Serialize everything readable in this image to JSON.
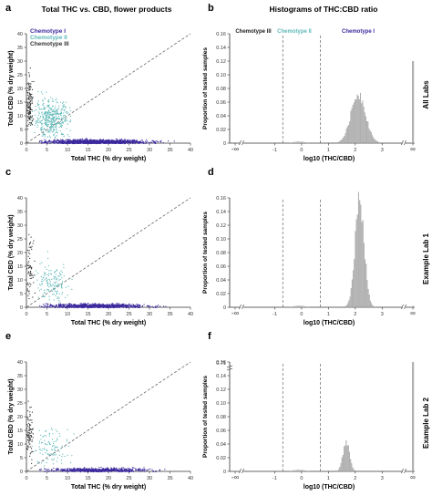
{
  "title_left": "Total THC vs. CBD, flower products",
  "title_right": "Histograms of THC:CBD ratio",
  "panel_letters": [
    "a",
    "b",
    "c",
    "d",
    "e",
    "f"
  ],
  "row_labels": [
    "All Labs",
    "Example Lab 1",
    "Example Lab 2"
  ],
  "legend": [
    {
      "label": "Chemotype I",
      "color": "#3c2a9e"
    },
    {
      "label": "Chemotype II",
      "color": "#5fb8b8"
    },
    {
      "label": "Chemotype III",
      "color": "#333333"
    }
  ],
  "chemotype_labels": {
    "iii": "Chemotype III",
    "ii": "Chemotype II",
    "i": "Chemotype I"
  },
  "chart_data": [
    {
      "type": "scatter",
      "panel": "a",
      "xlabel": "Total THC (% dry weight)",
      "ylabel": "Total CBD (% dry weight)",
      "xlim": [
        0,
        40
      ],
      "ylim": [
        0,
        40
      ],
      "xticks": [
        0,
        5,
        10,
        15,
        20,
        25,
        30,
        35,
        40
      ],
      "yticks": [
        0,
        5,
        10,
        15,
        20,
        25,
        30,
        35,
        40
      ],
      "series": [
        {
          "name": "Chemotype I",
          "cluster_center": [
            17,
            0.8
          ]
        },
        {
          "name": "Chemotype II",
          "cluster_center": [
            6,
            9
          ]
        },
        {
          "name": "Chemotype III",
          "cluster_center": [
            0.7,
            14
          ]
        }
      ]
    },
    {
      "type": "bar",
      "panel": "b",
      "xlabel": "log10 (THC/CBD)",
      "ylabel": "Proportion of tested samples",
      "ylim": [
        0,
        0.16
      ],
      "yticks": [
        "0",
        "0.02",
        "0.04",
        "0.06",
        "0.08",
        "0.10",
        "0.12",
        "0.14",
        "0.16"
      ],
      "xticks": [
        "-∞",
        "-1",
        "0",
        "1",
        "2",
        "3",
        "∞"
      ],
      "xlim": [
        -2,
        3.5
      ],
      "thresholds": [
        -0.7,
        0.7
      ],
      "histogram": {
        "center": 2.1,
        "sd": 0.27,
        "peak": 0.072
      }
    },
    {
      "type": "scatter",
      "panel": "c",
      "xlabel": "Total THC (% dry weight)",
      "ylabel": "Total CBD (% dry weight)",
      "xlim": [
        0,
        40
      ],
      "ylim": [
        0,
        40
      ],
      "xticks": [
        0,
        5,
        10,
        15,
        20,
        25,
        30,
        35,
        40
      ],
      "yticks": [
        0,
        5,
        10,
        15,
        20,
        25,
        30,
        35,
        40
      ]
    },
    {
      "type": "bar",
      "panel": "d",
      "xlabel": "log10 (THC/CBD)",
      "ylabel": "Proportion of tested samples",
      "ylim": [
        0,
        0.16
      ],
      "yticks": [
        "0",
        "0.02",
        "0.04",
        "0.06",
        "0.08",
        "0.10",
        "0.12",
        "0.14",
        "0.16"
      ],
      "xticks": [
        "-∞",
        "-1",
        "0",
        "1",
        "2",
        "3",
        "∞"
      ],
      "xlim": [
        -2,
        3.5
      ],
      "thresholds": [
        -0.7,
        0.7
      ],
      "histogram": {
        "center": 2.15,
        "sd": 0.17,
        "peak": 0.155
      }
    },
    {
      "type": "scatter",
      "panel": "e",
      "xlabel": "Total THC (% dry weight)",
      "ylabel": "Total CBD (% dry weight)",
      "xlim": [
        0,
        40
      ],
      "ylim": [
        0,
        40
      ],
      "xticks": [
        0,
        5,
        10,
        15,
        20,
        25,
        30,
        35,
        40
      ],
      "yticks": [
        0,
        5,
        10,
        15,
        20,
        25,
        30,
        35,
        40
      ]
    },
    {
      "type": "bar",
      "panel": "f",
      "xlabel": "log10 (THC/CBD)",
      "ylabel": "Proportion of tested samples",
      "ylim": [
        0,
        0.16
      ],
      "yticks": [
        "0",
        "0.02",
        "0.04",
        "0.06",
        "0.08",
        "0.10",
        "0.12",
        "0.14",
        "0.16"
      ],
      "xticks": [
        "-∞",
        "-1",
        "0",
        "1",
        "2",
        "3",
        "∞"
      ],
      "xlim": [
        -2,
        3.5
      ],
      "thresholds": [
        -0.7,
        0.7
      ],
      "inf_bar_value": "0.71",
      "histogram": {
        "center": 1.65,
        "sd": 0.12,
        "peak": 0.044
      }
    }
  ]
}
